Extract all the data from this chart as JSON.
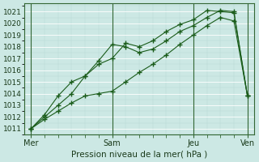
{
  "background_color": "#cce8e4",
  "plot_bg_color": "#cce8e4",
  "grid_color": "#aacccc",
  "line_color": "#1a5c1a",
  "title": "Pression niveau de la mer( hPa )",
  "ylim": [
    1010.5,
    1021.7
  ],
  "yticks": [
    1011,
    1012,
    1013,
    1014,
    1015,
    1016,
    1017,
    1018,
    1019,
    1020,
    1021
  ],
  "xtick_labels": [
    "Mer",
    "Sam",
    "Jeu",
    "Ven"
  ],
  "xtick_positions": [
    0,
    36,
    72,
    96
  ],
  "xlim": [
    -3,
    99
  ],
  "series1_x": [
    0,
    6,
    12,
    18,
    24,
    30,
    36,
    42,
    48,
    54,
    60,
    66,
    72,
    78,
    84,
    90,
    96
  ],
  "series1_y": [
    1011.0,
    1012.2,
    1013.8,
    1015.0,
    1015.5,
    1016.5,
    1017.0,
    1018.3,
    1018.0,
    1018.5,
    1019.3,
    1019.9,
    1020.3,
    1021.1,
    1021.0,
    1020.9,
    1013.8
  ],
  "series2_x": [
    0,
    6,
    12,
    18,
    24,
    30,
    36,
    42,
    48,
    54,
    60,
    66,
    72,
    78,
    84,
    90,
    96
  ],
  "series2_y": [
    1011.0,
    1012.0,
    1013.0,
    1014.0,
    1015.5,
    1016.8,
    1018.2,
    1018.0,
    1017.5,
    1017.8,
    1018.5,
    1019.3,
    1019.8,
    1020.5,
    1021.1,
    1021.0,
    1013.8
  ],
  "series3_x": [
    0,
    6,
    12,
    18,
    24,
    30,
    36,
    42,
    48,
    54,
    60,
    66,
    72,
    78,
    84,
    90,
    96
  ],
  "series3_y": [
    1011.0,
    1011.8,
    1012.5,
    1013.2,
    1013.8,
    1014.0,
    1014.2,
    1015.0,
    1015.8,
    1016.5,
    1017.3,
    1018.2,
    1019.0,
    1019.8,
    1020.5,
    1020.2,
    1013.8
  ]
}
